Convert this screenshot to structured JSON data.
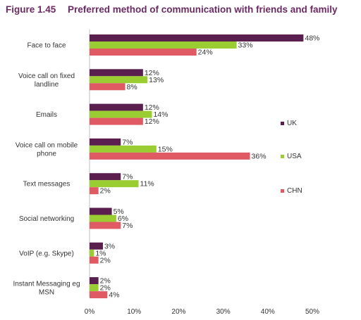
{
  "figure": {
    "number": "Figure 1.45",
    "title": "Preferred method of communication with friends and family"
  },
  "chart_data": {
    "type": "bar",
    "orientation": "horizontal",
    "categories": [
      [
        "Face to face"
      ],
      [
        "Voice call on fixed",
        "landline"
      ],
      [
        "Emails"
      ],
      [
        "Voice call on mobile",
        "phone"
      ],
      [
        "Text messages"
      ],
      [
        "Social networking"
      ],
      [
        "VoIP (e.g. Skype)"
      ],
      [
        "Instant Messaging eg",
        "MSN"
      ]
    ],
    "series": [
      {
        "name": "UK",
        "color": "#5b1f4f",
        "values": [
          48,
          12,
          12,
          7,
          7,
          5,
          3,
          2
        ]
      },
      {
        "name": "USA",
        "color": "#9acd32",
        "values": [
          33,
          13,
          14,
          15,
          11,
          6,
          1,
          2
        ]
      },
      {
        "name": "CHN",
        "color": "#e05a64",
        "values": [
          24,
          8,
          12,
          36,
          2,
          7,
          2,
          4
        ]
      }
    ],
    "value_suffix": "%",
    "xlim": [
      0,
      50
    ],
    "xticks": [
      "0%",
      "10%",
      "20%",
      "30%",
      "40%",
      "50%"
    ],
    "grid": false,
    "legend_position": "right"
  }
}
